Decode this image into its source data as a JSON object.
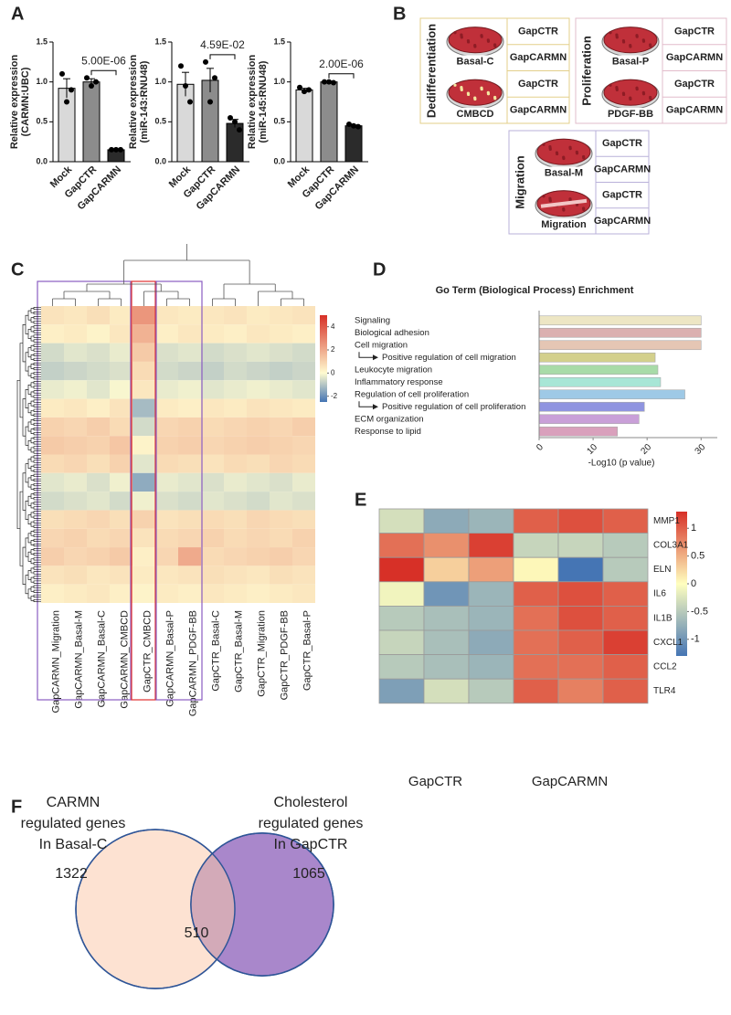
{
  "panel_labels": [
    "A",
    "B",
    "C",
    "D",
    "E",
    "F"
  ],
  "diagram": {
    "groups": [
      {
        "title": "Dedifferentiation",
        "conditions": [
          {
            "label": "Basal-C",
            "treatments": [
              "GapCTR",
              "GapCARMN"
            ]
          },
          {
            "label": "CMBCD",
            "treatments": [
              "GapCTR",
              "GapCARMN"
            ]
          }
        ]
      },
      {
        "title": "Proliferation",
        "conditions": [
          {
            "label": "Basal-P",
            "treatments": [
              "GapCTR",
              "GapCARMN"
            ]
          },
          {
            "label": "PDGF-BB",
            "treatments": [
              "GapCTR",
              "GapCARMN"
            ]
          }
        ]
      },
      {
        "title": "Migration",
        "conditions": [
          {
            "label": "Basal-M",
            "treatments": [
              "GapCTR",
              "GapCARMN"
            ]
          },
          {
            "label": "Migration",
            "treatments": [
              "GapCTR",
              "GapCARMN"
            ]
          }
        ]
      }
    ]
  },
  "chart_data": [
    {
      "type": "bar",
      "ylabel": [
        "Relative expression",
        "(CARMN:UBC)"
      ],
      "categories": [
        "Mock",
        "GapCTR",
        "GapCARMN"
      ],
      "values": [
        0.92,
        1.0,
        0.15
      ],
      "errors": [
        0.12,
        0.04,
        0.01
      ],
      "points": [
        [
          1.1,
          0.75,
          0.9
        ],
        [
          1.05,
          0.95,
          1.0
        ],
        [
          0.15,
          0.15,
          0.15
        ]
      ],
      "colors": [
        "#d9d9d9",
        "#8c8c8c",
        "#2b2b2b"
      ],
      "ylim": [
        0,
        1.5
      ],
      "yticks": [
        {
          "value": 0,
          "label": "0.0"
        },
        0.5,
        {
          "value": 1,
          "label": "1.0"
        },
        1.5
      ],
      "annotation": "5.00E-06"
    },
    {
      "type": "bar",
      "ylabel": [
        "Relative expression",
        "(miR-143:RNU48)"
      ],
      "categories": [
        "Mock",
        "GapCTR",
        "GapCARMN"
      ],
      "values": [
        0.97,
        1.02,
        0.48
      ],
      "errors": [
        0.15,
        0.15,
        0.05
      ],
      "points": [
        [
          1.2,
          0.95,
          0.75
        ],
        [
          1.25,
          0.75,
          1.05
        ],
        [
          0.55,
          0.5,
          0.4
        ]
      ],
      "colors": [
        "#d9d9d9",
        "#8c8c8c",
        "#2b2b2b"
      ],
      "ylim": [
        0,
        1.5
      ],
      "yticks": [
        {
          "value": 0,
          "label": "0.0"
        },
        0.5,
        {
          "value": 1,
          "label": "1.0"
        },
        1.5
      ],
      "annotation": "4.59E-02"
    },
    {
      "type": "bar",
      "ylabel": [
        "Relative expression",
        "(miR-145:RNU48)"
      ],
      "categories": [
        "Mock",
        "GapCTR",
        "GapCARMN"
      ],
      "values": [
        0.9,
        1.0,
        0.45
      ],
      "errors": [
        0.02,
        0.01,
        0.01
      ],
      "points": [
        [
          0.93,
          0.88,
          0.9
        ],
        [
          1.0,
          1.0,
          0.99
        ],
        [
          0.47,
          0.45,
          0.44
        ]
      ],
      "colors": [
        "#d9d9d9",
        "#8c8c8c",
        "#2b2b2b"
      ],
      "ylim": [
        0,
        1.5
      ],
      "yticks": [
        {
          "value": 0,
          "label": "0.0"
        },
        0.5,
        {
          "value": 1,
          "label": "1.0"
        },
        1.5
      ],
      "annotation": "2.00E-06"
    },
    {
      "type": "heatmap",
      "columns": [
        "GapCARMN_Migration",
        "GapCARMN_Basal-M",
        "GapCARMN_Basal-C",
        "GapCARMN_CMBCD",
        "GapCTR_CMBCD",
        "GapCARMN_Basal-P",
        "GapCARMN_PDGF-BB",
        "GapCTR_Basal-C",
        "GapCTR_Basal-M",
        "GapCTR_Migration",
        "GapCTR_PDGF-BB",
        "GapCTR_Basal-P"
      ],
      "matrix": [
        [
          0.6,
          0.5,
          0.7,
          0.4,
          2.5,
          0.5,
          0.4,
          0.5,
          0.6,
          0.4,
          0.5,
          0.6
        ],
        [
          0.3,
          0.4,
          0.2,
          0.5,
          1.8,
          0.3,
          0.5,
          0.4,
          0.3,
          0.5,
          0.4,
          0.3
        ],
        [
          -0.6,
          -0.4,
          -0.5,
          -0.3,
          1.2,
          -0.5,
          -0.4,
          -0.6,
          -0.5,
          -0.4,
          -0.5,
          -0.6
        ],
        [
          -0.8,
          -0.7,
          -0.6,
          -0.5,
          0.8,
          -0.6,
          -0.7,
          -0.8,
          -0.6,
          -0.7,
          -0.8,
          -0.7
        ],
        [
          -0.3,
          -0.2,
          -0.4,
          -0.1,
          0.5,
          -0.3,
          -0.2,
          -0.4,
          -0.3,
          -0.2,
          -0.3,
          -0.4
        ],
        [
          0.4,
          0.5,
          0.3,
          0.6,
          -1.2,
          0.4,
          0.3,
          0.5,
          0.4,
          0.6,
          0.5,
          0.4
        ],
        [
          1.0,
          0.9,
          1.1,
          0.8,
          -0.6,
          0.9,
          1.0,
          0.8,
          0.9,
          1.0,
          0.9,
          1.1
        ],
        [
          1.2,
          1.1,
          1.0,
          1.3,
          0.2,
          1.0,
          1.1,
          0.9,
          1.0,
          1.1,
          1.0,
          0.9
        ],
        [
          0.8,
          0.9,
          0.7,
          1.0,
          -0.4,
          0.8,
          0.7,
          0.6,
          0.8,
          0.7,
          0.9,
          0.8
        ],
        [
          -0.4,
          -0.3,
          -0.5,
          -0.2,
          -1.5,
          -0.3,
          -0.4,
          -0.5,
          -0.3,
          -0.4,
          -0.5,
          -0.3
        ],
        [
          -0.6,
          -0.5,
          -0.4,
          -0.6,
          -0.2,
          -0.5,
          -0.6,
          -0.4,
          -0.5,
          -0.6,
          -0.4,
          -0.5
        ],
        [
          0.7,
          0.8,
          0.9,
          0.7,
          1.0,
          0.6,
          0.7,
          0.8,
          0.7,
          0.9,
          0.8,
          0.7
        ],
        [
          0.9,
          1.0,
          0.8,
          0.9,
          0.6,
          0.8,
          0.9,
          1.0,
          0.8,
          0.9,
          0.8,
          1.0
        ],
        [
          1.1,
          0.9,
          1.0,
          1.2,
          0.3,
          0.9,
          2.0,
          0.8,
          0.9,
          1.0,
          1.1,
          0.9
        ],
        [
          0.6,
          0.7,
          0.5,
          0.6,
          0.4,
          0.5,
          0.6,
          0.7,
          0.6,
          0.5,
          0.7,
          0.6
        ],
        [
          0.3,
          0.4,
          0.5,
          0.3,
          0.2,
          0.4,
          0.3,
          0.5,
          0.4,
          0.3,
          0.4,
          0.5
        ]
      ],
      "clim": [
        -2.5,
        5
      ],
      "colorbar_ticks": [
        4,
        2,
        0,
        -2
      ],
      "colorscale": [
        "#4575b4",
        "#fffbd0",
        "#d73027"
      ]
    },
    {
      "type": "hbar",
      "title": "Go Term (Biological Process) Enrichment",
      "categories": [
        "Signaling",
        "Biological adhesion",
        "Cell migration",
        "Positive regulation of cell migration",
        "Leukocyte migration",
        "Inflammatory response",
        "Regulation of cell proliferation",
        "Positive regulation of cell proliferation",
        "ECM organization",
        "Response to lipid"
      ],
      "values": [
        30,
        30,
        30,
        21.5,
        22,
        22.5,
        27,
        19.5,
        18.5,
        14.5
      ],
      "colors": [
        "#ede6c4",
        "#dbb0b0",
        "#e5c6b4",
        "#d3d08c",
        "#a8dba8",
        "#a8e6d6",
        "#9ec9e6",
        "#8f94e0",
        "#c9a0d8",
        "#d9a0bc"
      ],
      "sub": [
        false,
        false,
        false,
        true,
        false,
        false,
        false,
        true,
        false,
        false
      ],
      "xlim": [
        0,
        33
      ],
      "xticks": [
        0,
        10,
        20,
        30
      ],
      "xlabel": "-Log10 (p value)"
    },
    {
      "type": "heatmap",
      "rows": [
        "MMP1",
        "COL3A1",
        "ELN",
        "IL6",
        "IL1B",
        "CXCL1",
        "CCL2",
        "TLR4"
      ],
      "column_labels": [
        "GapCTR",
        "GapCARMN"
      ],
      "matrix": [
        [
          -0.3,
          -0.8,
          -0.7,
          1.0,
          1.1,
          1.0
        ],
        [
          0.9,
          0.7,
          1.2,
          -0.4,
          -0.4,
          -0.5
        ],
        [
          1.4,
          0.3,
          0.6,
          0.05,
          -1.3,
          -0.5
        ],
        [
          -0.1,
          -1.0,
          -0.7,
          1.0,
          1.1,
          1.0
        ],
        [
          -0.5,
          -0.6,
          -0.7,
          0.9,
          1.1,
          1.0
        ],
        [
          -0.4,
          -0.6,
          -0.8,
          0.9,
          1.0,
          1.2
        ],
        [
          -0.5,
          -0.6,
          -0.7,
          0.9,
          0.9,
          1.0
        ],
        [
          -0.9,
          -0.3,
          -0.5,
          1.0,
          0.8,
          1.0
        ]
      ],
      "clim": [
        -1.3,
        1.3
      ],
      "colorbar_ticks": [
        1,
        0.5,
        0,
        -0.5,
        -1
      ],
      "colorscale": [
        "#4575b4",
        "#ffffbf",
        "#d73027"
      ]
    },
    {
      "type": "venn",
      "sets": [
        {
          "label": [
            "CARMN",
            "regulated genes",
            "In Basal-C"
          ],
          "size": 1322,
          "color": "#fde2d2"
        },
        {
          "label": [
            "Cholesterol",
            "regulated genes",
            "In GapCTR"
          ],
          "size": 1065,
          "color": "#a987cb"
        }
      ],
      "overlap": 510,
      "overlap_color": "#d3aab8"
    }
  ]
}
